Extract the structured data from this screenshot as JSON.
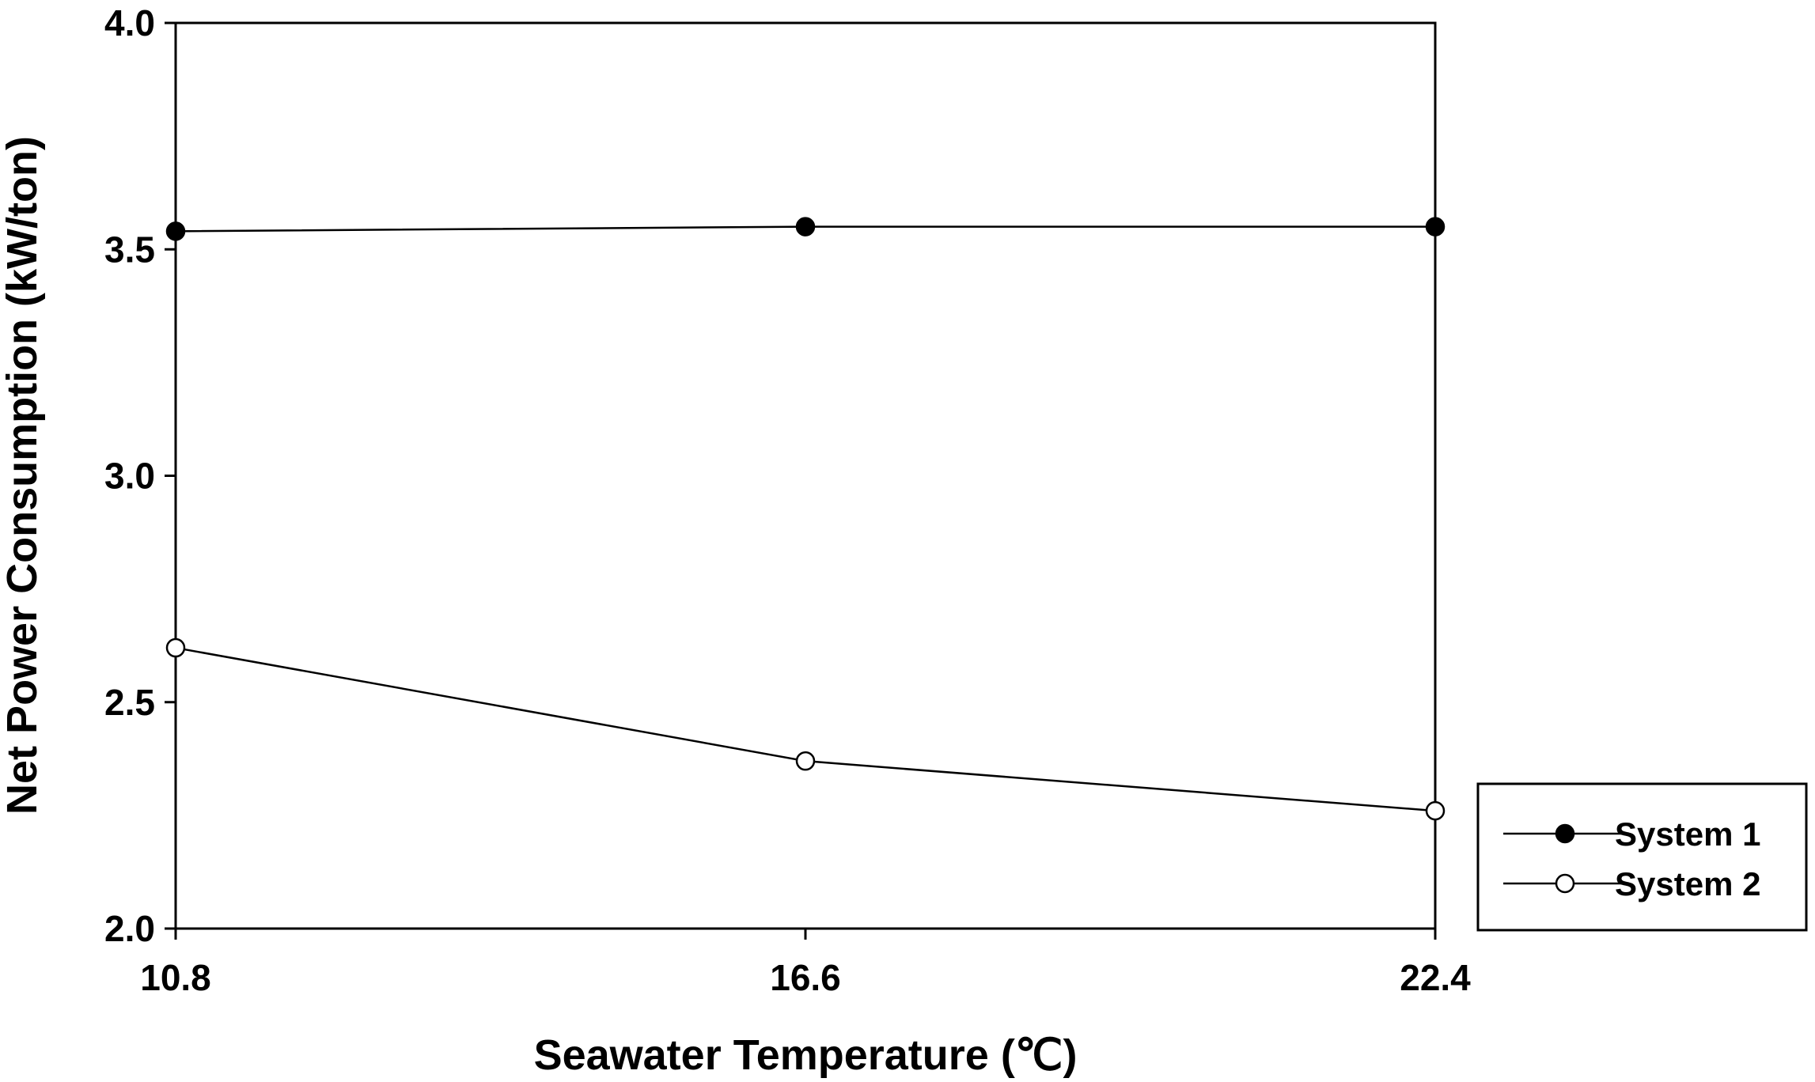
{
  "chart_data": {
    "type": "line",
    "title": "",
    "xlabel": "Seawater Temperature (℃)",
    "ylabel": "Net Power Consumption (kW/ton)",
    "x": [
      10.8,
      16.6,
      22.4
    ],
    "x_ticks": [
      "10.8",
      "16.6",
      "22.4"
    ],
    "y_ticks": [
      "2.0",
      "2.5",
      "3.0",
      "3.5",
      "4.0"
    ],
    "ylim": [
      2.0,
      4.0
    ],
    "grid": false,
    "legend_position": "bottom-right outside",
    "series": [
      {
        "name": "System 1",
        "values": [
          3.54,
          3.55,
          3.55
        ],
        "marker": "filled-circle",
        "color": "#000000"
      },
      {
        "name": "System 2",
        "values": [
          2.62,
          2.37,
          2.26
        ],
        "marker": "open-circle",
        "color": "#000000"
      }
    ]
  }
}
